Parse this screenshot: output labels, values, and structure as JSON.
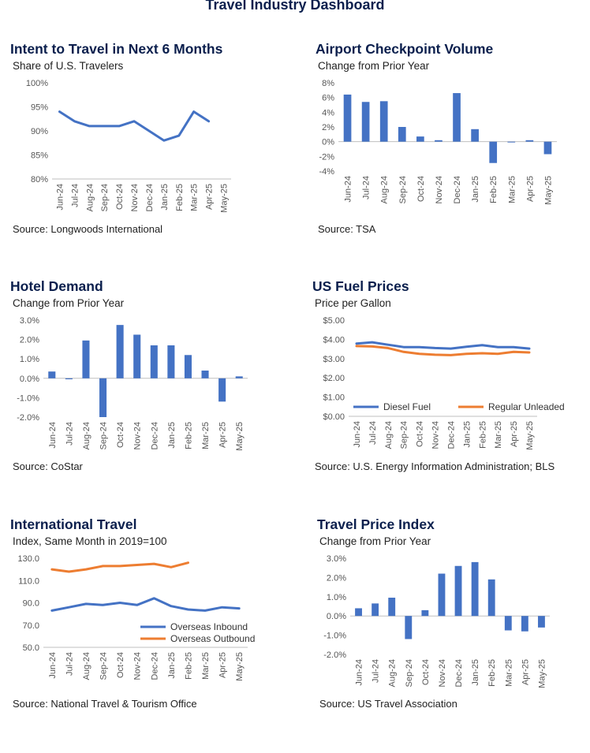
{
  "title": "Travel Industry Dashboard",
  "panels": [
    {
      "title": "Intent to Travel in Next 6 Months",
      "subtitle": "Share of U.S. Travelers",
      "source": "Source: Longwoods International"
    },
    {
      "title": "Airport Checkpoint Volume",
      "subtitle": "Change from Prior Year",
      "source": "Source: TSA"
    },
    {
      "title": "Hotel Demand",
      "subtitle": "Change from Prior Year",
      "source": "Source: CoStar"
    },
    {
      "title": "US Fuel Prices",
      "subtitle": "Price per Gallon",
      "source": "Source:  U.S. Energy Information Administration; BLS"
    },
    {
      "title": "International Travel",
      "subtitle": "Index, Same Month in 2019=100",
      "source": "Source: National Travel & Tourism Office"
    },
    {
      "title": "Travel Price Index",
      "subtitle": "Change from Prior Year",
      "source": "Source: US Travel Association"
    }
  ],
  "colors": {
    "blue": "#4472c4",
    "orange": "#ed7d31",
    "axis": "#bfbfbf",
    "title": "#0b1f4d"
  },
  "chart_data": [
    {
      "type": "line",
      "ylim": [
        80,
        100
      ],
      "yticks": [
        80,
        85,
        90,
        95,
        100
      ],
      "ytick_labels": [
        "80%",
        "85%",
        "90%",
        "95%",
        "100%"
      ],
      "categories": [
        "Jun-24",
        "Jul-24",
        "Aug-24",
        "Sep-24",
        "Oct-24",
        "Nov-24",
        "Dec-24",
        "Jan-25",
        "Feb-25",
        "Mar-25",
        "Apr-25",
        "May-25"
      ],
      "series": [
        {
          "values": [
            94,
            92,
            91,
            91,
            91,
            92,
            90,
            88,
            89,
            94,
            92,
            null
          ]
        }
      ]
    },
    {
      "type": "bar",
      "ylim": [
        -4,
        8
      ],
      "yticks": [
        -4,
        -2,
        0,
        2,
        4,
        6,
        8
      ],
      "ytick_labels": [
        "-4%",
        "-2%",
        "0%",
        "2%",
        "4%",
        "6%",
        "8%"
      ],
      "categories": [
        "Jun-24",
        "Jul-24",
        "Aug-24",
        "Sep-24",
        "Oct-24",
        "Nov-24",
        "Dec-24",
        "Jan-25",
        "Feb-25",
        "Mar-25",
        "Apr-25",
        "May-25"
      ],
      "values": [
        6.4,
        5.4,
        5.5,
        2.0,
        0.7,
        0.2,
        6.6,
        1.7,
        -2.9,
        -0.1,
        0.2,
        -1.7
      ]
    },
    {
      "type": "bar",
      "ylim": [
        -2,
        3
      ],
      "yticks": [
        -2,
        -1,
        0,
        1,
        2,
        3
      ],
      "ytick_labels": [
        "-2.0%",
        "-1.0%",
        "0.0%",
        "1.0%",
        "2.0%",
        "3.0%"
      ],
      "categories": [
        "Jun-24",
        "Jul-24",
        "Aug-24",
        "Sep-24",
        "Oct-24",
        "Nov-24",
        "Dec-24",
        "Jan-25",
        "Feb-25",
        "Mar-25",
        "Apr-25",
        "May-25"
      ],
      "values": [
        0.35,
        -0.05,
        1.95,
        -2.0,
        2.75,
        2.25,
        1.7,
        1.7,
        1.2,
        0.4,
        -1.2,
        0.1
      ]
    },
    {
      "type": "line",
      "ylim": [
        0,
        5
      ],
      "yticks": [
        0,
        1,
        2,
        3,
        4,
        5
      ],
      "ytick_labels": [
        "$0.00",
        "$1.00",
        "$2.00",
        "$3.00",
        "$4.00",
        "$5.00"
      ],
      "categories": [
        "Jun-24",
        "Jul-24",
        "Aug-24",
        "Sep-24",
        "Oct-24",
        "Nov-24",
        "Dec-24",
        "Jan-25",
        "Feb-25",
        "Mar-25",
        "Apr-25",
        "May-25"
      ],
      "legend": "bottom",
      "series": [
        {
          "name": "Diesel Fuel",
          "color": "blue",
          "values": [
            3.78,
            3.85,
            3.72,
            3.6,
            3.6,
            3.55,
            3.52,
            3.62,
            3.7,
            3.6,
            3.6,
            3.52
          ]
        },
        {
          "name": "Regular Unleaded",
          "color": "orange",
          "values": [
            3.65,
            3.63,
            3.55,
            3.35,
            3.25,
            3.2,
            3.18,
            3.25,
            3.28,
            3.25,
            3.35,
            3.32
          ]
        }
      ]
    },
    {
      "type": "line",
      "ylim": [
        50,
        130
      ],
      "yticks": [
        50,
        70,
        90,
        110,
        130
      ],
      "ytick_labels": [
        "50.0",
        "70.0",
        "90.0",
        "110.0",
        "130.0"
      ],
      "categories": [
        "Jun-24",
        "Jul-24",
        "Aug-24",
        "Sep-24",
        "Oct-24",
        "Nov-24",
        "Dec-24",
        "Jan-25",
        "Feb-25",
        "Mar-25",
        "Apr-25",
        "May-25"
      ],
      "legend": "bottom-right",
      "series": [
        {
          "name": "Overseas Inbound",
          "color": "blue",
          "values": [
            83,
            86,
            89,
            88,
            90,
            88,
            94,
            87,
            84,
            83,
            86,
            85
          ]
        },
        {
          "name": "Overseas Outbound",
          "color": "orange",
          "values": [
            120,
            118,
            120,
            123,
            123,
            124,
            125,
            122,
            126,
            null,
            null,
            null
          ]
        }
      ]
    },
    {
      "type": "bar",
      "ylim": [
        -2,
        3
      ],
      "yticks": [
        -2,
        -1,
        0,
        1,
        2,
        3
      ],
      "ytick_labels": [
        "-2.0%",
        "-1.0%",
        "0.0%",
        "1.0%",
        "2.0%",
        "3.0%"
      ],
      "categories": [
        "Jun-24",
        "Jul-24",
        "Aug-24",
        "Sep-24",
        "Oct-24",
        "Nov-24",
        "Dec-24",
        "Jan-25",
        "Feb-25",
        "Mar-25",
        "Apr-25",
        "May-25"
      ],
      "values": [
        0.4,
        0.65,
        0.95,
        -1.2,
        0.3,
        2.2,
        2.6,
        2.8,
        1.9,
        -0.75,
        -0.8,
        -0.6
      ]
    }
  ]
}
